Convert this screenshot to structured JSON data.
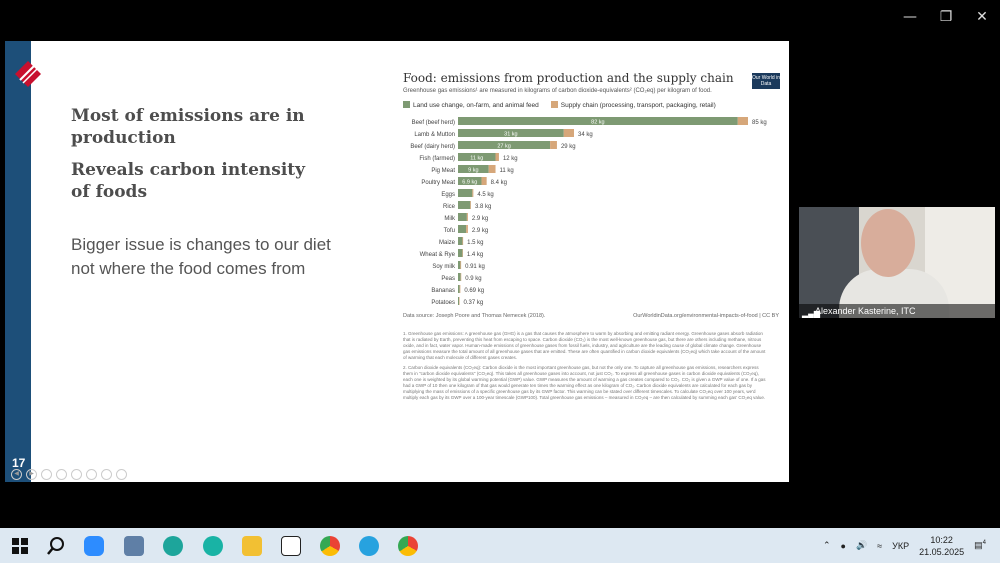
{
  "window": {
    "minimize_icon": "minimize-icon",
    "restore_icon": "restore-icon",
    "close_icon": "close-icon"
  },
  "slide": {
    "number": "17",
    "bullets_heading": [
      "Most of emissions are in production",
      "Reveals carbon intensity of foods"
    ],
    "bullet_body": "Bigger issue is changes to our diet not where the food comes from"
  },
  "chart": {
    "title": "Food: emissions from production and the supply chain",
    "subtitle": "Greenhouse gas emissions¹ are measured in kilograms of carbon dioxide-equivalents² (CO₂eq) per kilogram of food.",
    "owid_logo": "Our World in Data",
    "legend": [
      {
        "label": "Land use change, on-farm, and animal feed",
        "color": "#7e9a73"
      },
      {
        "label": "Supply chain (processing, transport, packaging, retail)",
        "color": "#d6a77a"
      }
    ],
    "source_left": "Data source: Joseph Poore and Thomas Nemecek (2018).",
    "source_right": "OurWorldinData.org/environmental-impacts-of-food | CC BY",
    "footnote1": "1. Greenhouse gas emissions: A greenhouse gas (GHG) is a gas that causes the atmosphere to warm by absorbing and emitting radiant energy. Greenhouse gases absorb radiation that is radiated by Earth, preventing this heat from escaping to space. Carbon dioxide (CO₂) is the most well-known greenhouse gas, but there are others including methane, nitrous oxide, and in fact, water vapor. Human-made emissions of greenhouse gases from fossil fuels, industry, and agriculture are the leading cause of global climate change. Greenhouse gas emissions measure the total amount of all greenhouse gases that are emitted. These are often quantified in carbon dioxide equivalents (CO₂eq) which take account of the amount of warming that each molecule of different gases creates.",
    "footnote2": "2. Carbon dioxide equivalents (CO₂eq): Carbon dioxide is the most important greenhouse gas, but not the only one. To capture all greenhouse gas emissions, researchers express them in \"carbon dioxide equivalents\" (CO₂eq). This takes all greenhouse gases into account, not just CO₂. To express all greenhouse gases in carbon dioxide equivalents (CO₂eq), each one is weighted by its global warming potential (GWP) value. GWP measures the amount of warming a gas creates compared to CO₂. CO₂ is given a GWP value of one. If a gas had a GWP of 10 then one kilogram of that gas would generate ten times the warming effect as one kilogram of CO₂. Carbon dioxide equivalents are calculated for each gas by multiplying the mass of emissions of a specific greenhouse gas by its GWP factor. This warming can be stated over different timescales. To calculate CO₂eq over 100 years, we'd multiply each gas by its GWP over a 100-year timescale (GWP100). Total greenhouse gas emissions – measured in CO₂eq – are then calculated by summing each gas' CO₂eq value."
  },
  "chart_data": {
    "type": "bar",
    "orientation": "horizontal",
    "stacked": true,
    "categories": [
      "Beef (beef herd)",
      "Lamb & Mutton",
      "Beef (dairy herd)",
      "Fish (farmed)",
      "Pig Meat",
      "Poultry Meat",
      "Eggs",
      "Rice",
      "Milk",
      "Tofu",
      "Maize",
      "Wheat & Rye",
      "Soy milk",
      "Peas",
      "Bananas",
      "Potatoes"
    ],
    "series": [
      {
        "name": "Land use change, on-farm, and animal feed",
        "values": [
          82,
          31,
          27,
          11,
          9,
          6.9,
          4.2,
          3.6,
          2.6,
          2.4,
          1.3,
          1.3,
          0.7,
          0.8,
          0.5,
          0.3
        ]
      },
      {
        "name": "Supply chain (processing, transport, packaging, retail)",
        "values": [
          3,
          3,
          2,
          1,
          2,
          1.5,
          0.3,
          0.2,
          0.3,
          0.5,
          0.2,
          0.1,
          0.21,
          0.1,
          0.19,
          0.07
        ]
      }
    ],
    "total_labels": [
      "85 kg",
      "34 kg",
      "29 kg",
      "12 kg",
      "11 kg",
      "8.4 kg",
      "4.5 kg",
      "3.8 kg",
      "2.9 kg",
      "2.9 kg",
      "1.5 kg",
      "1.4 kg",
      "0.91 kg",
      "0.9 kg",
      "0.69 kg",
      "0.37 kg"
    ],
    "inner_labels": [
      "82 kg",
      "31 kg",
      "27 kg",
      "11 kg",
      "9 kg",
      "6.9 kg",
      "",
      "",
      "",
      "",
      "",
      "",
      "",
      "",
      "",
      ""
    ],
    "xlim": [
      0,
      85
    ]
  },
  "camera": {
    "name": "Alexander Kasterine, ITC"
  },
  "taskbar": {
    "apps": [
      "windows-icon",
      "search-icon",
      "zoom-icon",
      "files-icon",
      "edge-icon",
      "claws-icon",
      "explorer-icon",
      "capcut-icon",
      "chrome-icon",
      "telegram-icon",
      "chrome2-icon"
    ],
    "lang": "УКР",
    "time": "10:22",
    "date": "21.05.2025",
    "notif_count": "4"
  }
}
